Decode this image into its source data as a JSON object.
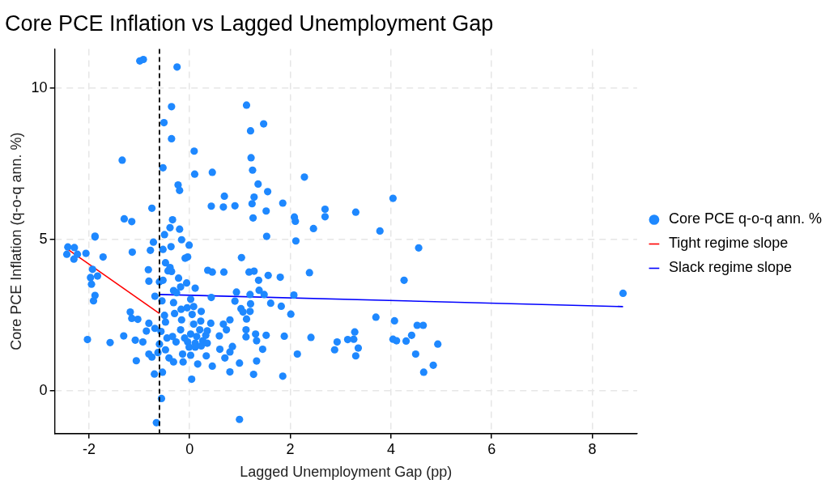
{
  "chart_data": {
    "type": "scatter",
    "title": "Core PCE Inflation vs Lagged Unemployment Gap",
    "xlabel": "Lagged Unemployment Gap (pp)",
    "ylabel": "Core PCE Inflation (q-o-q ann. %)",
    "xlim": [
      -2.68,
      8.89
    ],
    "xticks": [
      -2,
      0,
      2,
      4,
      6,
      8
    ],
    "ylim": [
      -1.42,
      11.3
    ],
    "yticks": [
      0,
      5,
      10
    ],
    "grid": true,
    "legend": "right",
    "ref_lines": [
      {
        "axis": "x",
        "value": -0.6,
        "color": "#000000",
        "line_style": "dashed"
      }
    ],
    "series": [
      {
        "name": "Core PCE q-o-q ann. %",
        "type": "scatter",
        "marker": "circle",
        "color": "#1e88ff",
        "x": [
          -0.99,
          -0.92,
          -0.25,
          -0.36,
          1.13,
          -0.51,
          1.47,
          1.21,
          -0.36,
          0.09,
          1.22,
          -1.34,
          -0.53,
          0.1,
          0.45,
          1.25,
          2.28,
          -0.23,
          -0.2,
          1.36,
          1.55,
          0.69,
          1.28,
          1.24,
          0.43,
          0.67,
          0.9,
          1.85,
          -0.75,
          1.52,
          2.69,
          2.69,
          2.08,
          2.1,
          -1.3,
          -1.15,
          -0.34,
          1.26,
          -0.39,
          -0.2,
          2.46,
          -0.5,
          -1.88,
          1.53,
          3.3,
          4.04,
          3.78,
          4.55,
          4.26,
          8.61,
          3.7,
          4.07,
          4.52,
          4.64,
          3.28,
          3.14,
          3.26,
          2.93,
          2.88,
          3.35,
          3.3,
          4.04,
          4.11,
          4.3,
          4.41,
          4.93,
          4.49,
          4.84,
          4.65,
          -1.88,
          -2.42,
          -2.29,
          -2.44,
          -2.3,
          -2.23,
          -2.06,
          -1.72,
          -1.14,
          -0.72,
          -0.78,
          -0.53,
          -0.37,
          -0.16,
          -0.01,
          -0.09,
          -0.04,
          1.03,
          2.11,
          -1.93,
          -1.97,
          -1.83,
          -1.95,
          -1.88,
          -1.91,
          -0.82,
          -0.81,
          -0.48,
          -0.39,
          -0.43,
          -0.36,
          -0.6,
          -0.53,
          -0.22,
          -0.06,
          -0.18,
          0.11,
          -0.32,
          -0.26,
          -0.69,
          -0.55,
          -0.32,
          0.02,
          0.36,
          0.45,
          0.68,
          1.18,
          1.28,
          1.37,
          1.56,
          1.8,
          2.38,
          0.93,
          1.2,
          1.38,
          1.48,
          2.07,
          0.43,
          0.9,
          1.21,
          1.61,
          1.82,
          1.02,
          1.06,
          1.2,
          1.13,
          2.01,
          -1.18,
          -1.15,
          -1.03,
          -0.81,
          -0.86,
          -0.69,
          -0.57,
          -0.5,
          -0.48,
          -0.3,
          -0.17,
          -0.05,
          0.08,
          0.23,
          0.05,
          -0.16,
          0.22,
          0.42,
          0.08,
          0.35,
          0.67,
          0.8,
          0.73,
          0.59,
          -0.18,
          -0.34,
          -0.45,
          -0.27,
          -0.1,
          0.02,
          0.14,
          0.2,
          -0.04,
          0.11,
          0.26,
          0.32,
          -0.01,
          0.11,
          0.23,
          0.35,
          -0.6,
          -0.48,
          -0.63,
          -0.81,
          -0.75,
          -1.08,
          -0.93,
          -1.31,
          -1.58,
          -2.03,
          -1.06,
          -0.41,
          -0.32,
          -0.14,
          0.02,
          -0.13,
          0.16,
          0.33,
          0.45,
          0.6,
          0.7,
          0.85,
          0.8,
          0.99,
          0.8,
          1.12,
          1.12,
          1.31,
          1.33,
          1.52,
          1.88,
          1.45,
          1.33,
          1.27,
          1.85,
          2.14,
          2.41,
          -0.7,
          -0.54,
          0.04,
          -0.56,
          -0.66,
          0.99
        ],
        "values": [
          10.9,
          10.95,
          10.7,
          9.39,
          9.44,
          8.86,
          8.82,
          8.59,
          8.33,
          7.92,
          7.7,
          7.62,
          7.37,
          7.16,
          7.22,
          7.29,
          7.06,
          6.8,
          6.62,
          6.83,
          6.58,
          6.43,
          6.4,
          6.18,
          6.1,
          6.07,
          6.11,
          6.2,
          6.03,
          5.94,
          6.0,
          5.75,
          5.74,
          5.6,
          5.68,
          5.59,
          5.65,
          5.71,
          5.39,
          5.34,
          5.36,
          5.16,
          5.11,
          5.1,
          5.9,
          6.36,
          5.28,
          4.72,
          3.65,
          3.22,
          2.43,
          2.31,
          2.16,
          2.16,
          1.94,
          1.69,
          1.7,
          1.61,
          1.35,
          1.41,
          1.15,
          1.7,
          1.65,
          1.64,
          1.83,
          1.54,
          1.21,
          0.84,
          0.61,
          5.08,
          4.75,
          4.73,
          4.51,
          4.35,
          4.51,
          4.54,
          4.42,
          4.58,
          4.91,
          4.64,
          4.67,
          4.76,
          4.99,
          4.81,
          4.38,
          4.42,
          4.4,
          4.95,
          4.01,
          3.74,
          3.79,
          3.52,
          3.15,
          2.97,
          4.0,
          3.62,
          4.23,
          4.07,
          3.96,
          3.94,
          3.6,
          3.65,
          3.72,
          3.56,
          3.43,
          3.39,
          3.31,
          3.24,
          3.12,
          2.97,
          2.91,
          3.02,
          3.98,
          3.92,
          3.92,
          3.92,
          3.95,
          3.65,
          3.81,
          3.75,
          3.9,
          3.26,
          3.18,
          3.32,
          3.18,
          3.16,
          3.08,
          2.96,
          2.87,
          2.89,
          2.79,
          2.71,
          2.6,
          2.62,
          2.37,
          2.53,
          2.6,
          2.39,
          2.36,
          2.23,
          1.97,
          2.06,
          1.96,
          2.49,
          2.27,
          2.55,
          2.69,
          2.74,
          2.78,
          2.62,
          2.52,
          2.34,
          2.3,
          2.23,
          2.2,
          1.98,
          2.2,
          2.34,
          2.01,
          1.81,
          2.01,
          1.79,
          1.74,
          1.61,
          1.74,
          1.87,
          1.79,
          2.01,
          1.61,
          1.57,
          1.65,
          1.83,
          1.44,
          1.44,
          1.48,
          1.57,
          1.54,
          1.35,
          1.26,
          1.21,
          1.11,
          1.67,
          1.61,
          1.81,
          1.59,
          1.69,
          0.99,
          1.08,
          0.95,
          1.21,
          1.17,
          0.95,
          0.88,
          1.15,
          0.81,
          1.37,
          1.08,
          1.46,
          1.28,
          0.91,
          0.62,
          2.01,
          1.78,
          1.87,
          1.65,
          1.83,
          1.8,
          1.37,
          0.98,
          0.54,
          0.48,
          1.21,
          1.76,
          0.55,
          0.61,
          0.38,
          -0.26,
          -1.06,
          -0.95
        ]
      },
      {
        "name": "Tight regime slope",
        "type": "line",
        "color": "#ff0000",
        "x": [
          -2.42,
          -0.6
        ],
        "values": [
          4.67,
          2.55
        ]
      },
      {
        "name": "Slack regime slope",
        "type": "line",
        "color": "#0000ff",
        "x": [
          -0.6,
          8.61
        ],
        "values": [
          3.18,
          2.78
        ]
      }
    ]
  }
}
